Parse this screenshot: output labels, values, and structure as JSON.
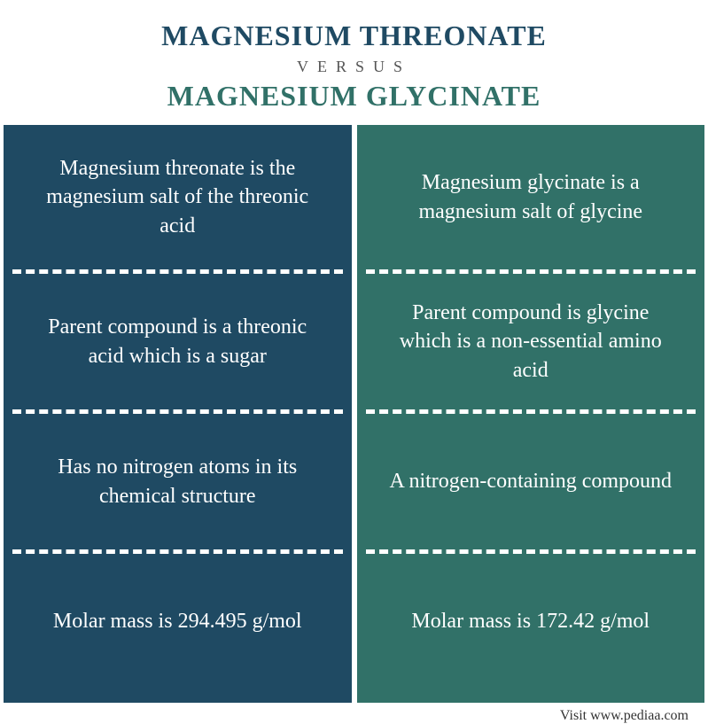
{
  "header": {
    "title_a": "MAGNESIUM THREONATE",
    "versus": "VERSUS",
    "title_b": "MAGNESIUM GLYCINATE",
    "color_a": "#1f4a63",
    "color_b": "#317168"
  },
  "columns": {
    "left": {
      "bg_color": "#1f4a63",
      "cells": [
        "Magnesium threonate is the magnesium salt of the threonic acid",
        "Parent compound is a threonic acid which is a sugar",
        "Has no nitrogen atoms in its chemical structure",
        "Molar mass is 294.495 g/mol"
      ]
    },
    "right": {
      "bg_color": "#317168",
      "cells": [
        "Magnesium glycinate is a magnesium salt of glycine",
        "Parent compound is glycine which is a non-essential amino acid",
        "A nitrogen-containing compound",
        "Molar mass is 172.42 g/mol"
      ]
    }
  },
  "footer": "Visit www.pediaa.com",
  "style": {
    "cell_font_size": 24,
    "header_font_size": 32,
    "versus_font_size": 18,
    "footer_font_size": 16,
    "row_divider_style": "dashed",
    "row_divider_color": "#ffffff",
    "column_gap_color": "#ffffff"
  }
}
